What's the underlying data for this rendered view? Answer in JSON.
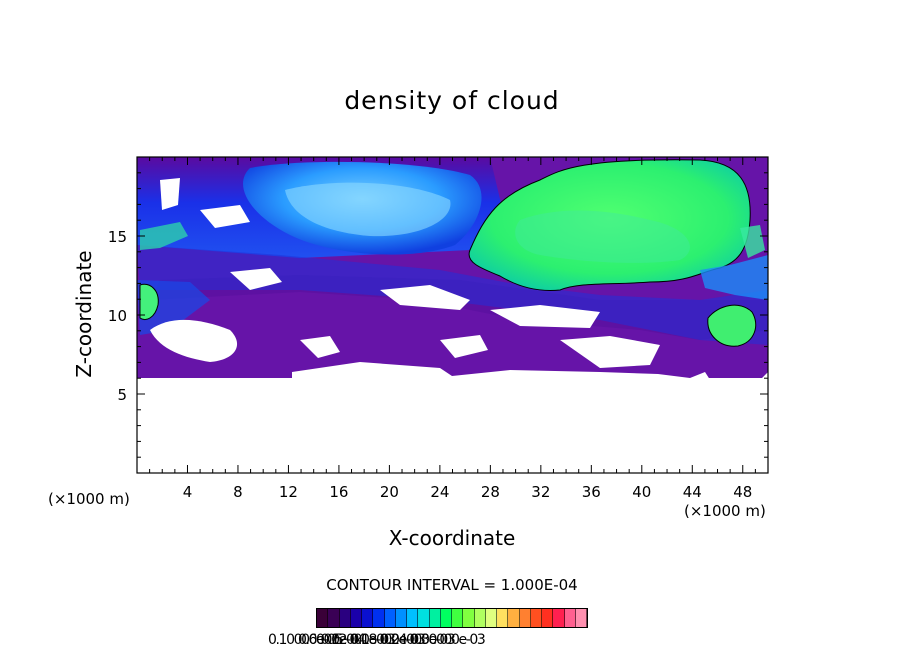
{
  "chart_data": {
    "type": "heatmap",
    "title": "density of cloud",
    "xlabel": "X-coordinate",
    "ylabel": "Z-coordinate",
    "x_unit_label": "(×1000 m)",
    "y_unit_label": "(×1000 m)",
    "xlim": [
      0,
      50
    ],
    "ylim": [
      0,
      20
    ],
    "x_ticks": [
      4,
      8,
      12,
      16,
      20,
      24,
      28,
      32,
      36,
      40,
      44,
      48
    ],
    "y_ticks": [
      5,
      10,
      15
    ],
    "contour_interval_label": "CONTOUR INTERVAL = 1.000E-04",
    "colorbar_labels": [
      "0.10000e-05",
      "0.6000e-04",
      "0.12000e-03",
      "0.18000e-03",
      "0.24000e-03",
      "0.30000e-03"
    ],
    "colorbar_colors": [
      "#3a0038",
      "#3a0055",
      "#2a0080",
      "#1a00aa",
      "#0a10d0",
      "#0030f0",
      "#0060ff",
      "#0090ff",
      "#00c0ff",
      "#00e0e0",
      "#00f0a0",
      "#00ff60",
      "#40ff40",
      "#80ff40",
      "#b0ff60",
      "#e0ff80",
      "#ffe060",
      "#ffb040",
      "#ff8030",
      "#ff5020",
      "#ff3020",
      "#ff2050",
      "#ff6090",
      "#ff90b0"
    ],
    "regions": [
      {
        "name": "low-density-layer",
        "level": 2e-05,
        "color": "#6a14a8"
      },
      {
        "name": "upper-left-cloud",
        "level": 9e-05,
        "color": "#34a8ff"
      },
      {
        "name": "upper-right-cloud",
        "level": 0.00016,
        "color": "#2cff78"
      },
      {
        "name": "left-edge-core",
        "level": 0.00014,
        "color": "#44f07c"
      },
      {
        "name": "right-edge-core",
        "level": 0.00014,
        "color": "#40ee70"
      }
    ]
  }
}
